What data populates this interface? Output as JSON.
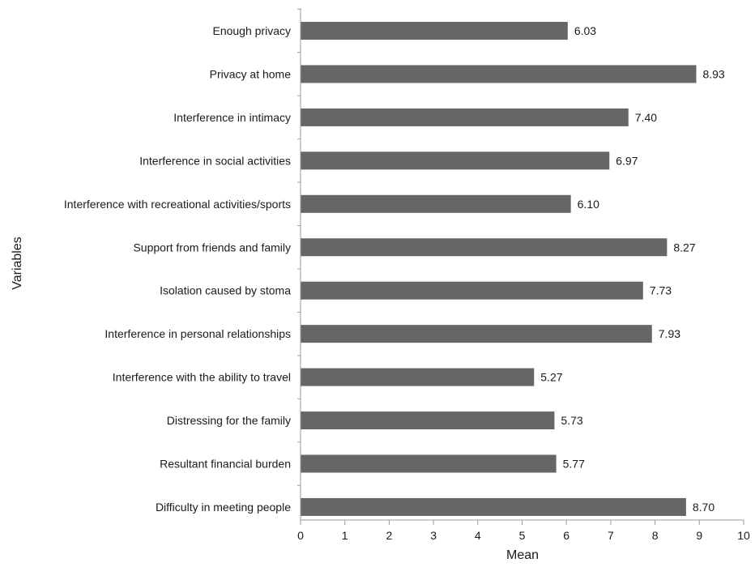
{
  "chart_data": {
    "type": "bar",
    "orientation": "horizontal",
    "title": "",
    "xlabel": "Mean",
    "ylabel": "Variables",
    "xlim": [
      0,
      10
    ],
    "xticks": [
      0,
      1,
      2,
      3,
      4,
      5,
      6,
      7,
      8,
      9,
      10
    ],
    "grid": false,
    "legend": "none",
    "bar_color": "#666666",
    "categories": [
      "Enough privacy",
      "Privacy at home",
      "Interference in intimacy",
      "Interference in social activities",
      "Interference with recreational activities/sports",
      "Support from friends and family",
      "Isolation caused by stoma",
      "Interference in personal relationships",
      "Interference with the ability to travel",
      "Distressing for the family",
      "Resultant financial burden",
      "Difficulty in meeting people"
    ],
    "values": [
      6.03,
      8.93,
      7.4,
      6.97,
      6.1,
      8.27,
      7.73,
      7.93,
      5.27,
      5.73,
      5.77,
      8.7
    ],
    "value_labels": [
      "6.03",
      "8.93",
      "7.40",
      "6.97",
      "6.10",
      "8.27",
      "7.73",
      "7.93",
      "5.27",
      "5.73",
      "5.77",
      "8.70"
    ]
  }
}
